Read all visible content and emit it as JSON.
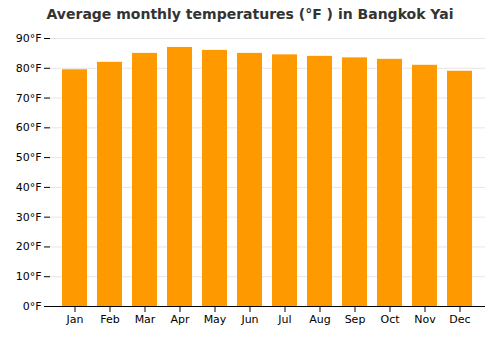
{
  "chart_data": {
    "type": "bar",
    "title": "Average monthly temperatures (°F ) in Bangkok Yai",
    "categories": [
      "Jan",
      "Feb",
      "Mar",
      "Apr",
      "May",
      "Jun",
      "Jul",
      "Aug",
      "Sep",
      "Oct",
      "Nov",
      "Dec"
    ],
    "values": [
      79.5,
      82.0,
      85.0,
      87.0,
      86.0,
      85.0,
      84.5,
      84.0,
      83.5,
      83.0,
      81.0,
      79.0
    ],
    "color": "#FF9900",
    "ylim": [
      0,
      90
    ],
    "yticks": [
      {
        "value": 0,
        "label": "0°F"
      },
      {
        "value": 10,
        "label": "10°F"
      },
      {
        "value": 20,
        "label": "20°F"
      },
      {
        "value": 30,
        "label": "30°F"
      },
      {
        "value": 40,
        "label": "40°F"
      },
      {
        "value": 50,
        "label": "50°F"
      },
      {
        "value": 60,
        "label": "60°F"
      },
      {
        "value": 70,
        "label": "70°F"
      },
      {
        "value": 80,
        "label": "80°F"
      },
      {
        "value": 90,
        "label": "90°F"
      }
    ],
    "grid": true
  }
}
